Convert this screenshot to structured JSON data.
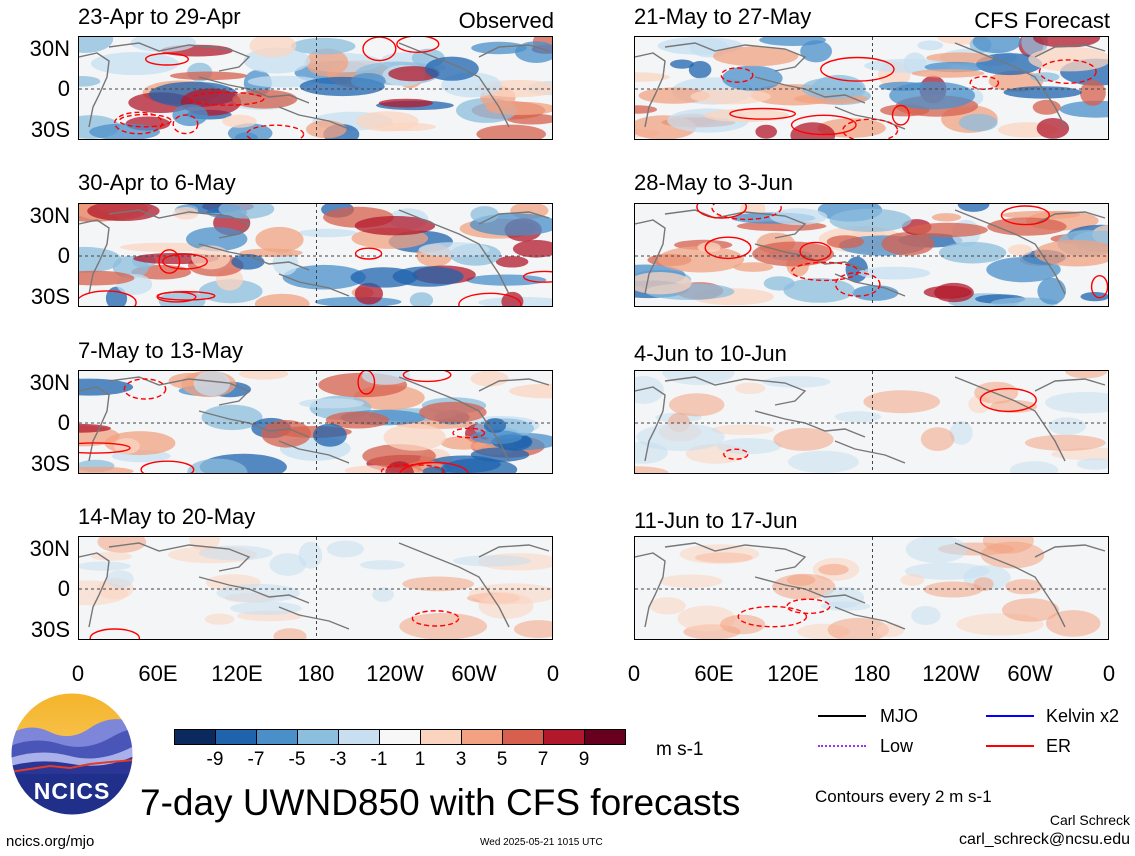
{
  "panels": [
    {
      "title": "23-Apr to 29-Apr",
      "corner": "Observed"
    },
    {
      "title": "21-May to 27-May",
      "corner": "CFS Forecast"
    },
    {
      "title": "30-Apr to 6-May",
      "corner": ""
    },
    {
      "title": "28-May to 3-Jun",
      "corner": ""
    },
    {
      "title": "7-May to 13-May",
      "corner": ""
    },
    {
      "title": "4-Jun to 10-Jun",
      "corner": ""
    },
    {
      "title": "14-May to 20-May",
      "corner": ""
    },
    {
      "title": "11-Jun to 17-Jun",
      "corner": ""
    }
  ],
  "lat_labels": [
    "30N",
    "0",
    "30S"
  ],
  "lon_labels": [
    "0",
    "60E",
    "120E",
    "180",
    "120W",
    "60W",
    "0"
  ],
  "colorbar": {
    "colors": [
      "#0a2a5e",
      "#1f63ad",
      "#4b8fc9",
      "#8cbedd",
      "#c7dff0",
      "#f7f7f7",
      "#fbd4c0",
      "#f2a282",
      "#d6604d",
      "#b2182b",
      "#67001f"
    ],
    "labels": [
      "-9",
      "-7",
      "-5",
      "-3",
      "-1",
      "1",
      "3",
      "5",
      "7",
      "9"
    ],
    "units": "m s-1"
  },
  "legend": {
    "items": [
      {
        "label": "MJO",
        "color": "#000000",
        "style": "solid"
      },
      {
        "label": "Kelvin x2",
        "color": "#0000ff",
        "style": "solid"
      },
      {
        "label": "Low",
        "color": "#9b30ff",
        "style": "dotted"
      },
      {
        "label": "ER",
        "color": "#ff0000",
        "style": "solid"
      }
    ],
    "contour_note": "Contours every 2 m s-1"
  },
  "logo": {
    "text": "NCICS"
  },
  "main_title": "7-day UWND850 with CFS forecasts",
  "credit_name": "Carl Schreck",
  "credit_email": "carl_schreck@ncsu.edu",
  "site_url": "ncics.org/mjo",
  "timestamp": "Wed 2025-05-21 1015 UTC"
}
